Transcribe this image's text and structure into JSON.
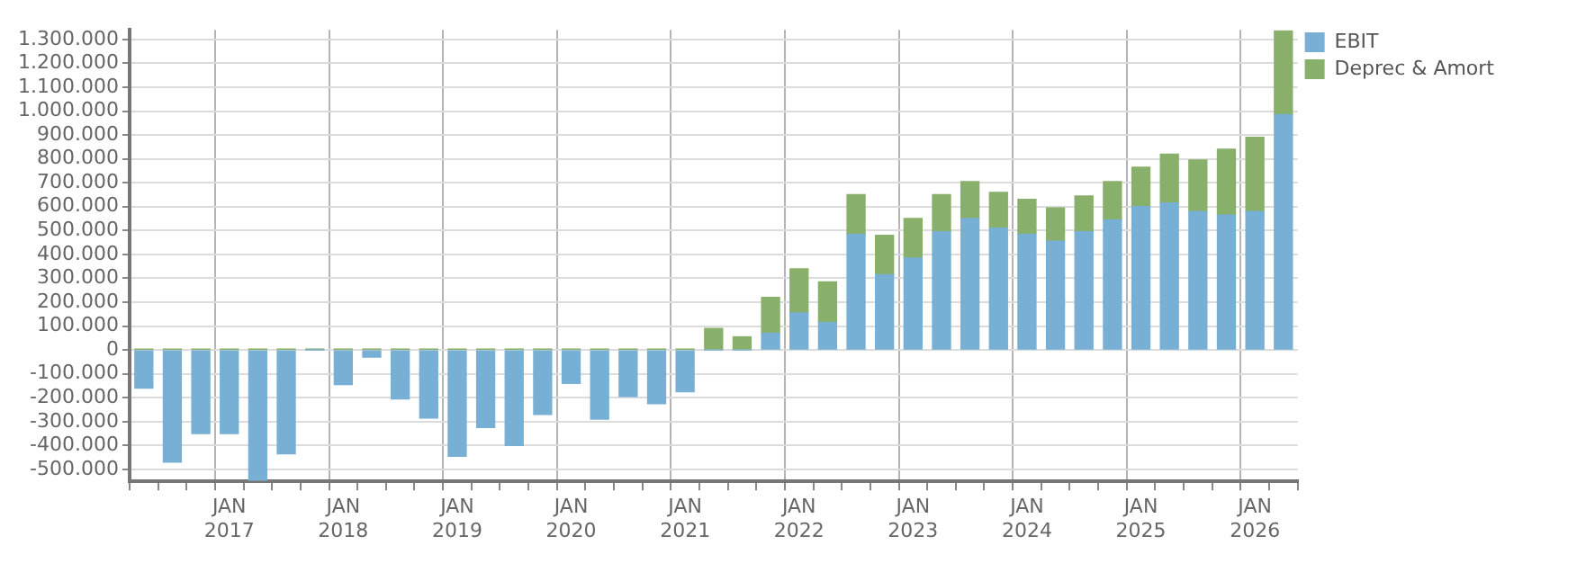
{
  "chart_data": {
    "type": "bar",
    "stacked": true,
    "categories": [
      null,
      null,
      null,
      "JAN 2017",
      null,
      null,
      null,
      "JAN 2018",
      null,
      null,
      null,
      "JAN 2019",
      null,
      null,
      null,
      "JAN 2020",
      null,
      null,
      null,
      "JAN 2021",
      null,
      null,
      null,
      "JAN 2022",
      null,
      null,
      null,
      "JAN 2023",
      null,
      null,
      null,
      "JAN 2024",
      null,
      null,
      null,
      "JAN 2025",
      null,
      null,
      null,
      "JAN 2026",
      null
    ],
    "series": [
      {
        "name": "EBIT",
        "color": "#77b0d4",
        "values": [
          -160000,
          -470000,
          -350000,
          -350000,
          -545000,
          -435000,
          0,
          -145000,
          -30000,
          -205000,
          -285000,
          -445000,
          -325000,
          -400000,
          -270000,
          -140000,
          -290000,
          -195000,
          -225000,
          -175000,
          0,
          0,
          70000,
          155000,
          115000,
          485000,
          315000,
          385000,
          495000,
          550000,
          510000,
          485000,
          455000,
          495000,
          545000,
          600000,
          615000,
          580000,
          565000,
          580000,
          985000
        ]
      },
      {
        "name": "Deprec & Amort",
        "color": "#88b06a",
        "values": [
          3000,
          3000,
          3000,
          3000,
          3000,
          3000,
          3000,
          3000,
          3000,
          3000,
          3000,
          3000,
          3000,
          3000,
          3000,
          3000,
          3000,
          3000,
          3000,
          3000,
          90000,
          55000,
          150000,
          185000,
          170000,
          165000,
          165000,
          165000,
          155000,
          155000,
          150000,
          145000,
          140000,
          150000,
          160000,
          165000,
          205000,
          215000,
          275000,
          310000,
          350000
        ]
      }
    ],
    "ylim": [
      -550000,
      1340000
    ],
    "yticks": [
      {
        "value": -500000,
        "label": "-500.000"
      },
      {
        "value": -400000,
        "label": "-400.000"
      },
      {
        "value": -300000,
        "label": "-300.000"
      },
      {
        "value": -200000,
        "label": "-200.000"
      },
      {
        "value": -100000,
        "label": "-100.000"
      },
      0,
      {
        "value": 100000,
        "label": "100.000"
      },
      {
        "value": 200000,
        "label": "200.000"
      },
      {
        "value": 300000,
        "label": "300.000"
      },
      {
        "value": 400000,
        "label": "400.000"
      },
      {
        "value": 500000,
        "label": "500.000"
      },
      {
        "value": 600000,
        "label": "600.000"
      },
      {
        "value": 700000,
        "label": "700.000"
      },
      {
        "value": 800000,
        "label": "800.000"
      },
      {
        "value": 900000,
        "label": "900.000"
      },
      {
        "value": 1000000,
        "label": "1.000.000"
      },
      {
        "value": 1100000,
        "label": "1.100.000"
      },
      {
        "value": 1200000,
        "label": "1.200.000"
      },
      {
        "value": 1300000,
        "label": "1.300.000"
      }
    ],
    "grid": true,
    "legend": "top right"
  }
}
